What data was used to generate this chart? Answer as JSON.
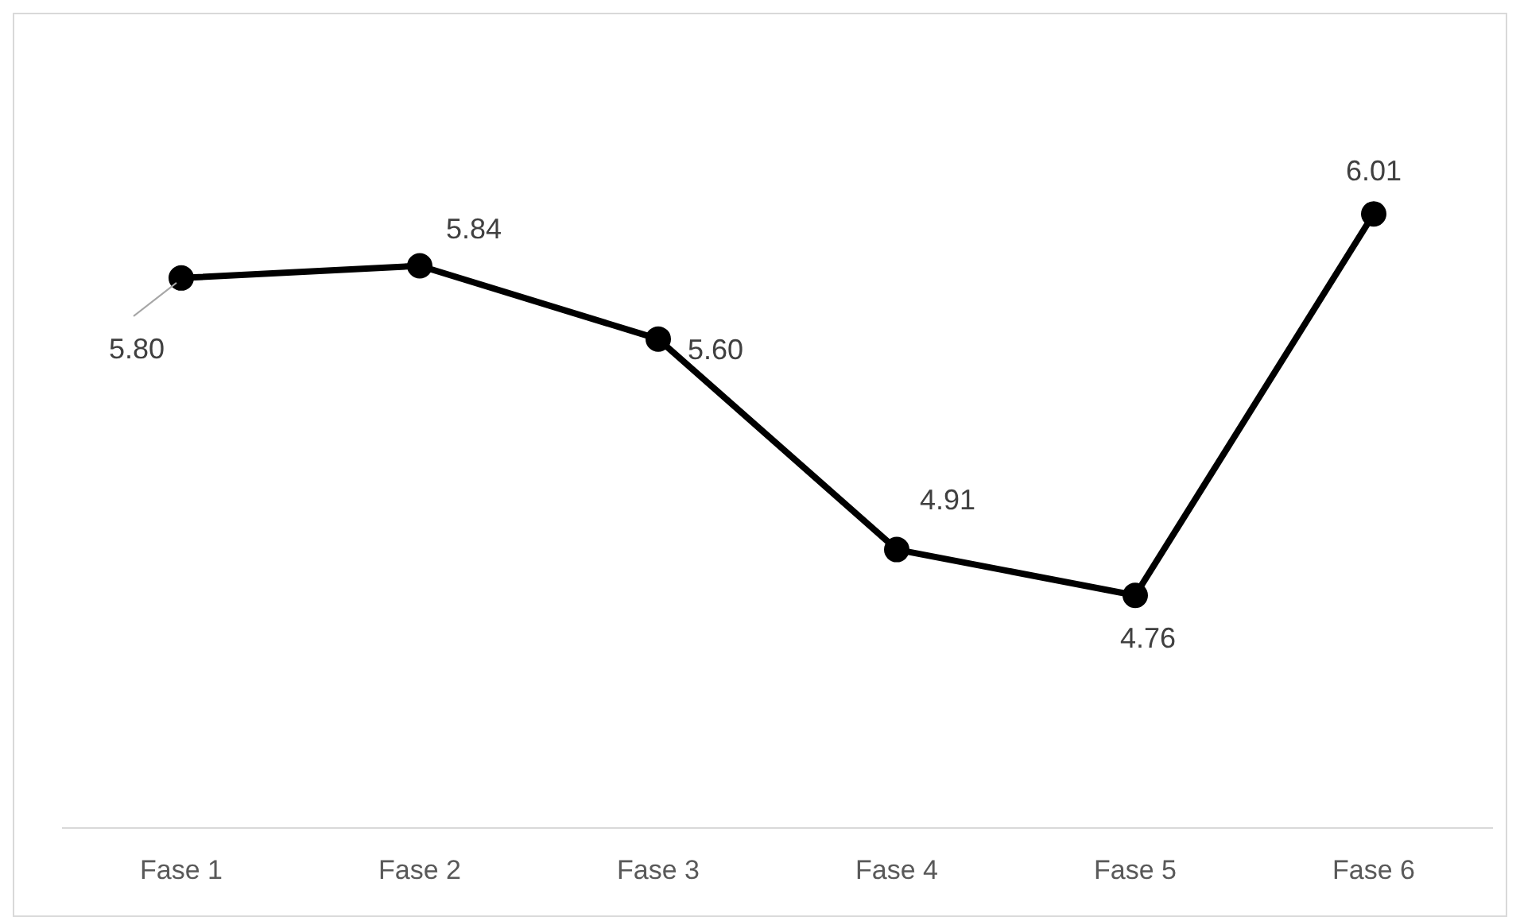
{
  "chart_data": {
    "type": "line",
    "categories": [
      "Fase 1",
      "Fase 2",
      "Fase 3",
      "Fase 4",
      "Fase 5",
      "Fase 6"
    ],
    "series": [
      {
        "color": "#000000",
        "values": [
          5.8,
          5.84,
          5.6,
          4.91,
          4.76,
          6.01
        ],
        "value_labels": [
          "5.80",
          "5.84",
          "5.60",
          "4.91",
          "4.76",
          "6.01"
        ]
      }
    ],
    "tick_labels": "x",
    "grid": false,
    "legend": false,
    "marker": "circle",
    "line_style": "solid"
  }
}
